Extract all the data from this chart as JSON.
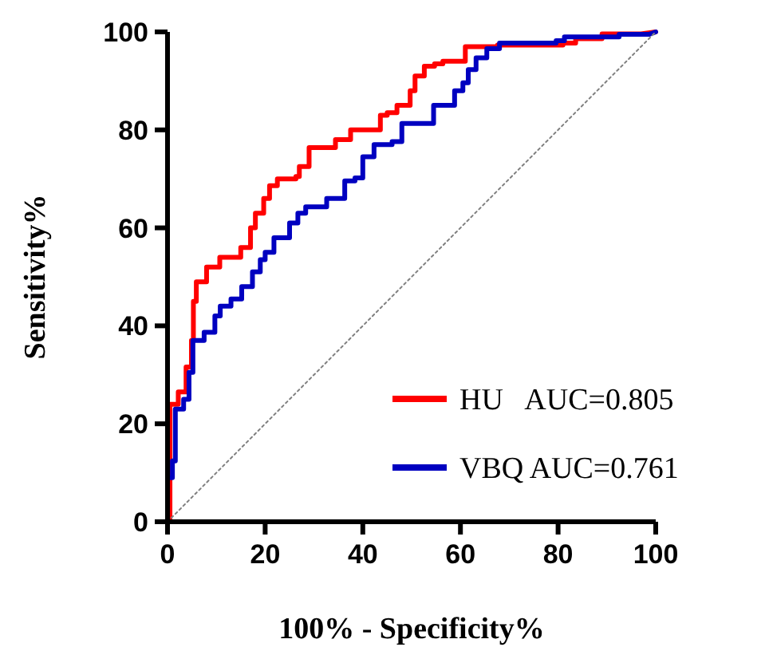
{
  "chart_data": {
    "type": "line",
    "xlabel": "100% - Specificity%",
    "ylabel": "Sensitivity%",
    "xlim": [
      0,
      100
    ],
    "ylim": [
      0,
      100
    ],
    "xticks": [
      0,
      20,
      40,
      60,
      80,
      100
    ],
    "yticks": [
      0,
      20,
      40,
      60,
      80,
      100
    ],
    "grid": false,
    "legend": "bottom right",
    "series": [
      {
        "name": "HU   AUC=0.805",
        "color": "#ff0000",
        "x": [
          0,
          0.5,
          0.5,
          2.2,
          2.2,
          3.8,
          3.8,
          4.9,
          4.9,
          5.3,
          5.3,
          5.9,
          5.9,
          8,
          8,
          10.7,
          10.7,
          15,
          15,
          17,
          17,
          18,
          18,
          19.7,
          19.7,
          20.9,
          20.9,
          22.5,
          22.5,
          26.3,
          26.3,
          27,
          27,
          29,
          29,
          34.4,
          34.4,
          37.5,
          37.5,
          40,
          40,
          43.6,
          43.6,
          45,
          45,
          47,
          47,
          49.7,
          49.7,
          50.7,
          50.7,
          52.6,
          52.6,
          54.7,
          54.7,
          56.4,
          56.4,
          61,
          61,
          67.6,
          67.6,
          81,
          81,
          83.6,
          83.6,
          89,
          89,
          97,
          100
        ],
        "values": [
          0,
          0,
          24,
          24,
          26.5,
          26.5,
          31.6,
          31.6,
          37,
          37,
          45,
          45,
          49,
          49,
          52,
          52,
          54,
          54,
          56,
          56,
          60,
          60,
          63,
          63,
          66,
          66,
          68.6,
          68.6,
          70,
          70,
          70.5,
          70.5,
          72.5,
          72.5,
          76.4,
          76.4,
          78,
          78,
          80,
          80,
          80,
          80,
          83,
          83,
          83.5,
          83.5,
          85,
          85,
          88,
          88,
          91,
          91,
          93,
          93,
          93.5,
          93.5,
          94,
          94,
          97,
          97,
          97.3,
          97.3,
          97.7,
          97.7,
          98.6,
          98.6,
          99.6,
          99.6,
          100
        ]
      },
      {
        "name": "VBQ AUC=0.761",
        "color": "#0000c0",
        "x": [
          0,
          0,
          1,
          1,
          1.6,
          1.6,
          3.3,
          3.3,
          4.4,
          4.4,
          5.2,
          5.2,
          7.5,
          7.5,
          9.7,
          9.7,
          10.8,
          10.8,
          13,
          13,
          15.2,
          15.2,
          17.4,
          17.4,
          19,
          19,
          20,
          20,
          21.8,
          21.8,
          25,
          25,
          26.7,
          26.7,
          28.3,
          28.3,
          32.6,
          32.6,
          36.3,
          36.3,
          38.4,
          38.4,
          40,
          40,
          42.3,
          42.3,
          46,
          46,
          48,
          48,
          54.5,
          54.5,
          58.8,
          58.8,
          60.5,
          60.5,
          61.6,
          61.6,
          63.2,
          63.2,
          65.4,
          65.4,
          68,
          68,
          79.6,
          79.6,
          81.3,
          81.3,
          92.5,
          92.5,
          98.6,
          100
        ],
        "values": [
          0,
          9,
          9,
          12.4,
          12.4,
          23,
          23,
          25,
          25,
          30.5,
          30.5,
          37,
          37,
          38.7,
          38.7,
          42,
          42,
          44,
          44,
          45.5,
          45.5,
          48,
          48,
          51,
          51,
          53.5,
          53.5,
          55,
          55,
          58,
          58,
          61,
          61,
          63,
          63,
          64.3,
          64.3,
          66,
          66,
          69.6,
          69.6,
          70.2,
          70.2,
          74.5,
          74.5,
          77,
          77,
          77.6,
          77.6,
          81.3,
          81.3,
          85,
          85,
          88,
          88,
          89.6,
          89.6,
          92.3,
          92.3,
          94.7,
          94.7,
          96.6,
          96.6,
          97.7,
          97.7,
          98.2,
          98.2,
          99,
          99,
          99.5,
          99.5,
          100
        ]
      },
      {
        "color": "#808080",
        "line_style": "dotted",
        "x": [
          0,
          100
        ],
        "values": [
          0,
          100
        ]
      }
    ]
  }
}
